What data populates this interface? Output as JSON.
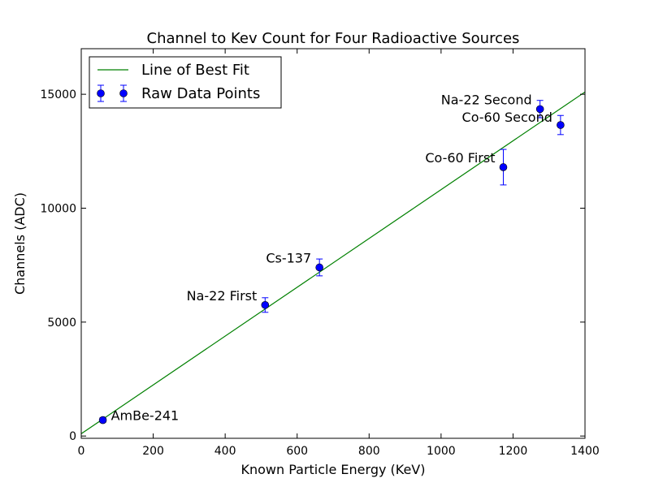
{
  "chart_data": {
    "type": "scatter",
    "title": "Channel to Kev Count for Four Radioactive Sources",
    "xlabel": "Known Particle Energy (KeV)",
    "ylabel": "Channels (ADC)",
    "xlim": [
      0,
      1400
    ],
    "ylim": [
      -100,
      17000
    ],
    "xticks": [
      0,
      200,
      400,
      600,
      800,
      1000,
      1200,
      1400
    ],
    "yticks": [
      0,
      5000,
      10000,
      15000
    ],
    "grid": false,
    "legend_position": "top-left",
    "series": [
      {
        "name": "Line of Best Fit",
        "kind": "line",
        "color": "#008000",
        "x": [
          0,
          1400
        ],
        "y": [
          100,
          15100
        ]
      },
      {
        "name": "Raw Data Points",
        "kind": "errorbar",
        "color": "#0000ff",
        "points": [
          {
            "label": "AmBe-241",
            "x": 60,
            "y": 700,
            "yerr": 100
          },
          {
            "label": "Na-22 First",
            "x": 511,
            "y": 5750,
            "yerr": 320
          },
          {
            "label": "Cs-137",
            "x": 662,
            "y": 7400,
            "yerr": 370
          },
          {
            "label": "Co-60 First",
            "x": 1173,
            "y": 11800,
            "yerr": 780
          },
          {
            "label": "Na-22 Second",
            "x": 1275,
            "y": 14350,
            "yerr": 380
          },
          {
            "label": "Co-60 Second",
            "x": 1332,
            "y": 13650,
            "yerr": 420
          }
        ]
      }
    ]
  }
}
